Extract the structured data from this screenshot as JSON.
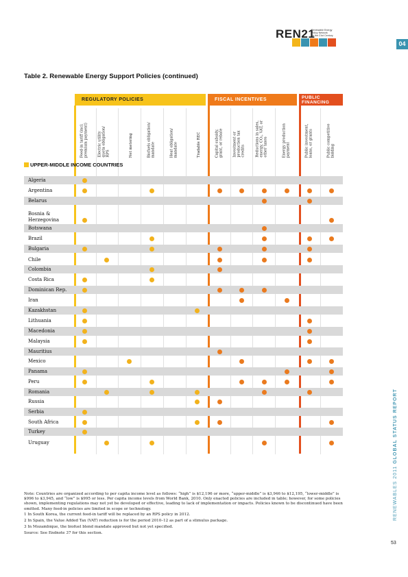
{
  "header": {
    "logo_text": "REN21",
    "logo_sub": [
      "Renewable Energy",
      "Policy Network",
      "for the 21st Century"
    ],
    "page_tab": "04"
  },
  "table": {
    "title": "Table 2. Renewable Energy Support Policies (continued)",
    "groups": [
      {
        "label": "REGULATORY POLICIES",
        "color": "#f7c31b"
      },
      {
        "label": "FISCAL INCENTIVES",
        "color": "#ef7a1a"
      },
      {
        "label": "PUBLIC FINANCING",
        "color": "#e34f1e"
      }
    ],
    "columns": [
      [
        "Feed-in tariff (incl.",
        "premium payment)"
      ],
      [
        "Electric utility",
        "quota obligation/",
        "RPS"
      ],
      [
        "Net metering"
      ],
      [
        "Biofuels obligation/",
        "mandate"
      ],
      [
        "Heat obligation/",
        "mandate"
      ],
      [
        "Tradable REC"
      ],
      [
        "Capital subsidy,",
        "grant, or rebate"
      ],
      [
        "Investment or",
        "production tax",
        "credits"
      ],
      [
        "Reductions in sales,",
        "energy, CO₂, VAT, or",
        "other taxes"
      ],
      [
        "Energy production",
        "payment"
      ],
      [
        "Public investment,",
        "loans, or grants"
      ],
      [
        "Public competitive",
        "bidding"
      ]
    ],
    "section": "UPPER-MIDDLE INCOME COUNTRIES",
    "rows": [
      {
        "name": "Algeria",
        "marks": [
          0
        ]
      },
      {
        "name": "Argentina",
        "marks": [
          0,
          3,
          6,
          7,
          8,
          9,
          10,
          11
        ]
      },
      {
        "name": "Belarus",
        "marks": [
          8,
          10
        ]
      },
      {
        "name": [
          "Bosnia &",
          "Herzegovina"
        ],
        "marks": [
          0,
          11
        ]
      },
      {
        "name": "Botswana",
        "marks": [
          8
        ]
      },
      {
        "name": "Brazil",
        "marks": [
          3,
          8,
          10,
          11
        ]
      },
      {
        "name": "Bulgaria",
        "marks": [
          0,
          3,
          6,
          8,
          10
        ]
      },
      {
        "name": "Chile",
        "marks": [
          1,
          6,
          8,
          10
        ]
      },
      {
        "name": "Colombia",
        "marks": [
          3,
          6
        ]
      },
      {
        "name": "Costa Rica",
        "marks": [
          0,
          3
        ]
      },
      {
        "name": "Dominican Rep.",
        "marks": [
          0,
          6,
          7,
          8
        ]
      },
      {
        "name": "Iran",
        "marks": [
          7,
          9
        ]
      },
      {
        "name": "Kazakhstan",
        "marks": [
          0,
          5
        ]
      },
      {
        "name": "Lithuania",
        "marks": [
          0,
          10
        ]
      },
      {
        "name": "Macedonia",
        "marks": [
          0,
          10
        ]
      },
      {
        "name": "Malaysia",
        "marks": [
          0,
          10
        ]
      },
      {
        "name": "Mauritius",
        "marks": [
          6
        ]
      },
      {
        "name": "Mexico",
        "marks": [
          2,
          7,
          10,
          11
        ]
      },
      {
        "name": "Panama",
        "marks": [
          0,
          9,
          11
        ]
      },
      {
        "name": "Peru",
        "marks": [
          0,
          3,
          7,
          8,
          9,
          11
        ]
      },
      {
        "name": "Romania",
        "marks": [
          1,
          3,
          5,
          8,
          10
        ]
      },
      {
        "name": "Russia",
        "marks": [
          5,
          6
        ]
      },
      {
        "name": "Serbia",
        "marks": [
          0
        ]
      },
      {
        "name": "South Africa",
        "marks": [
          0,
          5,
          6,
          11
        ]
      },
      {
        "name": "Turkey",
        "marks": [
          0
        ]
      },
      {
        "name": "Uruguay",
        "marks": [
          1,
          3,
          8,
          11
        ]
      }
    ]
  },
  "notes": [
    "Note: Countries are organized according to per capita income level as follows: “high” is $12,196 or more, “upper-middle” is $3,946 to $12,195, “lower-middle” is $996 to $3,945, and “low” is $995 or less. Per capita income levels from World Bank, 2010. Only enacted policies are included in table; however, for some policies shown, implementing regulations may not yet be developed or effective, leading to lack of implementation or impacts. Policies known to be discontinued have been omitted. Many feed-in policies are limited in scope or technology.",
    "1 In South Korea, the current feed-in tariff will be replaced by an RPS policy in 2012.",
    "2 In Spain, the Value Added Tax (VAT) reduction is for the period 2010–12 as part of a stimulus package.",
    "3 In Mozambique, the biofuel blend mandate approved but not yet specified.",
    "Source: See Endnote 37 for this section."
  ],
  "sidebar": {
    "text_a": "RENEWABLES 2011 ",
    "text_b": "GLOBAL STATUS REPORT",
    "page_number": "53"
  }
}
